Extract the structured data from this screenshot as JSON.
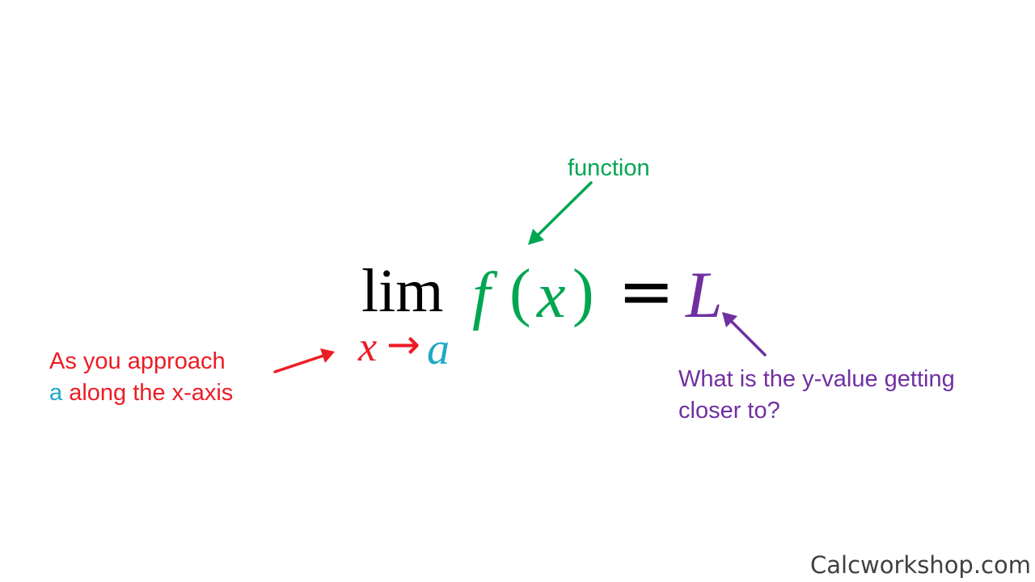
{
  "colors": {
    "black": "#000000",
    "green": "#00a651",
    "red": "#ed1c24",
    "teal": "#1fa9c6",
    "purple": "#7030a0",
    "gray": "#404040"
  },
  "equation": {
    "lim": "lim",
    "sub_x": "x",
    "sub_arrow": "→",
    "sub_a": "a",
    "f": "f",
    "open_paren": "(",
    "x": "x",
    "close_paren": ")",
    "equals": "=",
    "L": "L"
  },
  "annotations": {
    "function": "function",
    "approach_line1": "As you approach",
    "approach_line2_a": "a",
    "approach_line2_rest": " along the x-axis",
    "yvalue_line1": "What is the y-value getting",
    "yvalue_line2": "closer to?"
  },
  "icons": {
    "function_arrow": "arrow-down-left-icon",
    "approach_arrow": "arrow-right-icon",
    "yvalue_arrow": "arrow-up-left-icon"
  },
  "watermark": "Calcworkshop.com"
}
